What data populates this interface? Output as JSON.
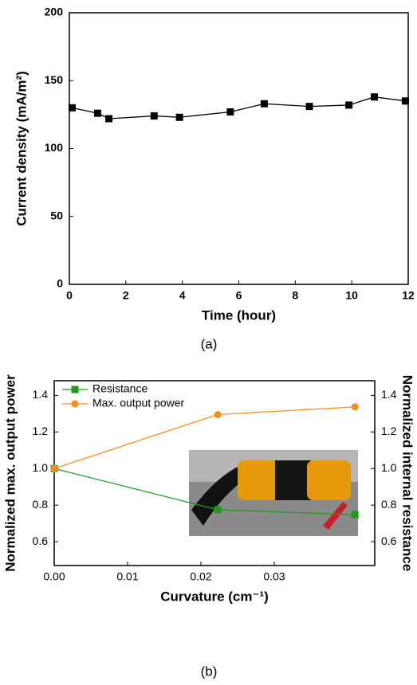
{
  "chart_data": [
    {
      "type": "line",
      "x_label": "Time (hour)",
      "y_label": "Current density (mA/m²)",
      "x": [
        0.1,
        1.0,
        1.4,
        3.0,
        3.9,
        5.7,
        6.9,
        8.5,
        9.9,
        10.8,
        11.9
      ],
      "series": [
        {
          "color": "#000000",
          "marker": "square",
          "values": [
            130,
            126,
            122,
            124,
            123,
            127,
            133,
            131,
            132,
            138,
            135
          ]
        }
      ],
      "xlim": [
        0,
        12
      ],
      "xticks": [
        0,
        2,
        4,
        6,
        8,
        10,
        12
      ],
      "ylim": [
        0,
        200
      ],
      "yticks": [
        0,
        50,
        100,
        150,
        200
      ]
    },
    {
      "type": "line",
      "x_label": "Curvature (cm⁻¹)",
      "y_label": "Normalized max. output power",
      "y2_label": "Normalized internal resistance",
      "x": [
        0,
        0.0223,
        0.041
      ],
      "series": [
        {
          "name": "Resistance",
          "color": "#1f9a1f",
          "marker": "square",
          "axis": "y2",
          "values": [
            1.0,
            0.775,
            0.748
          ]
        },
        {
          "name": "Max. output power",
          "color": "#ff8c1a",
          "marker": "circle",
          "values": [
            1.0,
            1.295,
            1.337
          ]
        }
      ],
      "xlim": [
        0,
        0.0437
      ],
      "xticks": [
        {
          "value": 0,
          "label": "0.00"
        },
        0.01,
        0.02,
        0.03
      ],
      "ylim": [
        0.47,
        1.48
      ],
      "yticks": [
        0.6,
        0.8,
        {
          "value": 1.0,
          "label": "1.0"
        },
        1.2,
        1.4
      ],
      "y2lim": [
        0.47,
        1.48
      ],
      "y2ticks": [
        0.6,
        0.8,
        {
          "value": 1.0,
          "label": "1.0"
        },
        1.2,
        1.4
      ],
      "legend": "upper left"
    }
  ],
  "captions": [
    "(a)",
    "(b)"
  ]
}
